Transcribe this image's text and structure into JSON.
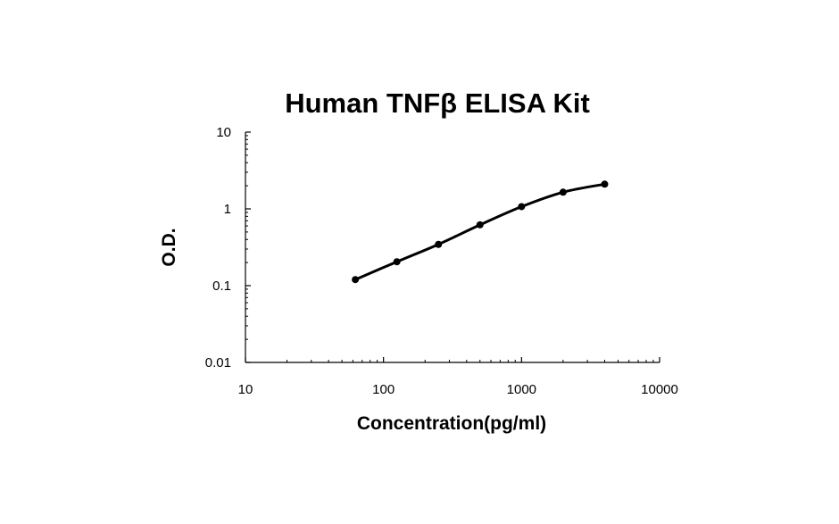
{
  "chart_data": {
    "type": "scatter",
    "title": "Human TNFβ ELISA Kit",
    "xlabel": "Concentration(pg/ml)",
    "ylabel": "O.D.",
    "x_scale": "log",
    "y_scale": "log",
    "xlim": [
      10,
      10000
    ],
    "ylim": [
      0.01,
      10
    ],
    "x_tick_labels": [
      "10",
      "100",
      "1000",
      "10000"
    ],
    "y_tick_labels": [
      "0.01",
      "0.1",
      "1",
      "10"
    ],
    "grid": false,
    "legend": "none",
    "series": [
      {
        "x": [
          62.5,
          125,
          250,
          500,
          1000,
          2000,
          4000
        ],
        "y": [
          0.12,
          0.205,
          0.345,
          0.62,
          1.07,
          1.65,
          2.1
        ],
        "trendline": "smooth"
      }
    ],
    "colors": {
      "line": "#000000",
      "marker": "#000000",
      "axis": "#000000"
    }
  }
}
